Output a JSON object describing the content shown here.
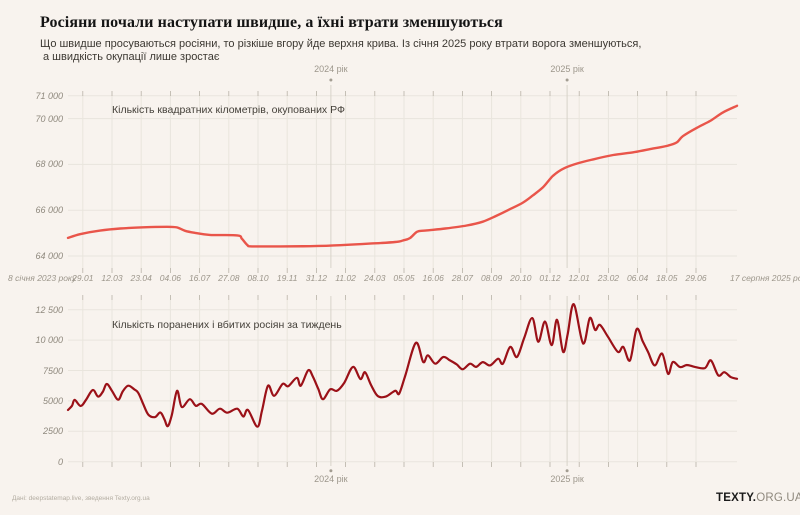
{
  "header": {
    "title": "Росіяни почали наступати швидше, а їхні втрати зменшуються",
    "subtitle_line1": "Що швидше просуваються росіяни, то різкіше вгору йде верхня крива. Із січня 2025 року втрати ворога зменшуються,",
    "subtitle_line2": "а швидкість окупації лише зростає"
  },
  "footer": {
    "source": "Дані: deepstatemap.live, зведення Texty.org.ua",
    "logo_bold": "TEXTY.",
    "logo_light": "ORG.UA"
  },
  "axis": {
    "x_left_label": "8 січня 2023 року",
    "x_right_label": "17 серпня 2025 року",
    "x_ticks": [
      "29.01",
      "12.03",
      "23.04",
      "04.06",
      "16.07",
      "27.08",
      "08.10",
      "19.11",
      "31.12",
      "11.02",
      "24.03",
      "05.05",
      "16.06",
      "28.07",
      "08.09",
      "20.10",
      "01.12",
      "12.01",
      "23.02",
      "06.04",
      "18.05",
      "29.06"
    ],
    "year_markers": [
      {
        "label": "2024 рік",
        "t": 0.393
      },
      {
        "label": "2025 рік",
        "t": 0.746
      }
    ]
  },
  "chart_data": [
    {
      "type": "line",
      "title": "Кількість квадратних кілометрів, окупованих РФ",
      "color": "#e9554a",
      "x_range": [
        "2023-01-08",
        "2025-08-17"
      ],
      "ylim": [
        63800,
        71000
      ],
      "y_ticks": [
        {
          "label": "71 000",
          "value": 71000
        },
        {
          "label": "70 000",
          "value": 70000
        },
        {
          "label": "68 000",
          "value": 68000
        },
        {
          "label": "66 000",
          "value": 66000
        },
        {
          "label": "64 000",
          "value": 64000
        }
      ],
      "points": [
        [
          0.0,
          64790
        ],
        [
          0.018,
          64950
        ],
        [
          0.048,
          65110
        ],
        [
          0.078,
          65200
        ],
        [
          0.123,
          65260
        ],
        [
          0.155,
          65270
        ],
        [
          0.164,
          65240
        ],
        [
          0.175,
          65100
        ],
        [
          0.19,
          65010
        ],
        [
          0.212,
          64920
        ],
        [
          0.253,
          64900
        ],
        [
          0.26,
          64750
        ],
        [
          0.268,
          64480
        ],
        [
          0.275,
          64420
        ],
        [
          0.317,
          64420
        ],
        [
          0.362,
          64430
        ],
        [
          0.407,
          64470
        ],
        [
          0.451,
          64540
        ],
        [
          0.489,
          64610
        ],
        [
          0.501,
          64680
        ],
        [
          0.511,
          64780
        ],
        [
          0.522,
          65060
        ],
        [
          0.534,
          65110
        ],
        [
          0.564,
          65200
        ],
        [
          0.596,
          65330
        ],
        [
          0.62,
          65500
        ],
        [
          0.64,
          65750
        ],
        [
          0.659,
          66020
        ],
        [
          0.68,
          66330
        ],
        [
          0.695,
          66650
        ],
        [
          0.71,
          67000
        ],
        [
          0.725,
          67500
        ],
        [
          0.74,
          67810
        ],
        [
          0.761,
          68040
        ],
        [
          0.785,
          68220
        ],
        [
          0.815,
          68410
        ],
        [
          0.845,
          68530
        ],
        [
          0.874,
          68690
        ],
        [
          0.897,
          68820
        ],
        [
          0.91,
          68960
        ],
        [
          0.919,
          69230
        ],
        [
          0.94,
          69600
        ],
        [
          0.96,
          69900
        ],
        [
          0.979,
          70270
        ],
        [
          1.0,
          70560
        ]
      ]
    },
    {
      "type": "line",
      "title": "Кількість поранених і вбитих росіян за тиждень",
      "color": "#9b1118",
      "x_range": [
        "2023-01-08",
        "2025-08-17"
      ],
      "ylim": [
        0,
        13300
      ],
      "y_ticks": [
        {
          "label": "12 500",
          "value": 12500
        },
        {
          "label": "10 000",
          "value": 10000
        },
        {
          "label": "7500",
          "value": 7500
        },
        {
          "label": "5000",
          "value": 5000
        },
        {
          "label": "2500",
          "value": 2500
        },
        {
          "label": "0",
          "value": 0
        }
      ],
      "points": [
        [
          0.0,
          4250
        ],
        [
          0.006,
          4600
        ],
        [
          0.01,
          5080
        ],
        [
          0.019,
          4580
        ],
        [
          0.027,
          5100
        ],
        [
          0.037,
          5900
        ],
        [
          0.045,
          5350
        ],
        [
          0.052,
          5750
        ],
        [
          0.058,
          6390
        ],
        [
          0.066,
          5800
        ],
        [
          0.075,
          5100
        ],
        [
          0.082,
          5800
        ],
        [
          0.09,
          6250
        ],
        [
          0.099,
          5950
        ],
        [
          0.105,
          5670
        ],
        [
          0.112,
          4800
        ],
        [
          0.12,
          3870
        ],
        [
          0.13,
          3670
        ],
        [
          0.138,
          4050
        ],
        [
          0.144,
          3500
        ],
        [
          0.149,
          2920
        ],
        [
          0.155,
          3800
        ],
        [
          0.163,
          5830
        ],
        [
          0.17,
          4500
        ],
        [
          0.182,
          5140
        ],
        [
          0.191,
          4600
        ],
        [
          0.2,
          4750
        ],
        [
          0.215,
          3950
        ],
        [
          0.227,
          4360
        ],
        [
          0.238,
          4030
        ],
        [
          0.253,
          4360
        ],
        [
          0.262,
          3720
        ],
        [
          0.269,
          4250
        ],
        [
          0.283,
          2880
        ],
        [
          0.29,
          4200
        ],
        [
          0.299,
          6250
        ],
        [
          0.308,
          5420
        ],
        [
          0.321,
          6400
        ],
        [
          0.329,
          6200
        ],
        [
          0.342,
          6900
        ],
        [
          0.348,
          6250
        ],
        [
          0.359,
          7520
        ],
        [
          0.366,
          7000
        ],
        [
          0.374,
          6000
        ],
        [
          0.381,
          5140
        ],
        [
          0.392,
          5950
        ],
        [
          0.402,
          5830
        ],
        [
          0.413,
          6500
        ],
        [
          0.426,
          7800
        ],
        [
          0.437,
          6800
        ],
        [
          0.444,
          7360
        ],
        [
          0.453,
          6300
        ],
        [
          0.463,
          5400
        ],
        [
          0.475,
          5350
        ],
        [
          0.489,
          5830
        ],
        [
          0.495,
          5600
        ],
        [
          0.504,
          7060
        ],
        [
          0.52,
          9780
        ],
        [
          0.531,
          8200
        ],
        [
          0.538,
          8750
        ],
        [
          0.549,
          8060
        ],
        [
          0.561,
          8610
        ],
        [
          0.571,
          8330
        ],
        [
          0.581,
          8000
        ],
        [
          0.59,
          7600
        ],
        [
          0.601,
          8060
        ],
        [
          0.61,
          7800
        ],
        [
          0.62,
          8190
        ],
        [
          0.631,
          7920
        ],
        [
          0.643,
          8470
        ],
        [
          0.65,
          8060
        ],
        [
          0.661,
          9440
        ],
        [
          0.671,
          8610
        ],
        [
          0.682,
          10200
        ],
        [
          0.694,
          11810
        ],
        [
          0.703,
          9860
        ],
        [
          0.713,
          11530
        ],
        [
          0.723,
          9580
        ],
        [
          0.731,
          11670
        ],
        [
          0.74,
          9030
        ],
        [
          0.747,
          10500
        ],
        [
          0.756,
          12950
        ],
        [
          0.77,
          9720
        ],
        [
          0.78,
          11810
        ],
        [
          0.788,
          10830
        ],
        [
          0.795,
          11250
        ],
        [
          0.807,
          10280
        ],
        [
          0.822,
          9030
        ],
        [
          0.83,
          9440
        ],
        [
          0.84,
          8330
        ],
        [
          0.85,
          10900
        ],
        [
          0.859,
          9900
        ],
        [
          0.867,
          9030
        ],
        [
          0.877,
          7920
        ],
        [
          0.888,
          8890
        ],
        [
          0.897,
          7220
        ],
        [
          0.904,
          8200
        ],
        [
          0.915,
          7780
        ],
        [
          0.925,
          7950
        ],
        [
          0.937,
          7800
        ],
        [
          0.952,
          7700
        ],
        [
          0.961,
          8330
        ],
        [
          0.972,
          7100
        ],
        [
          0.981,
          7360
        ],
        [
          0.991,
          6950
        ],
        [
          1.0,
          6820
        ]
      ]
    }
  ],
  "colors": {
    "background": "#f8f3ee",
    "grid": "#e9e5dd",
    "year_line": "#d8d3c9",
    "tick_mark": "#b8b2a7",
    "marker_dot": "#a39d92",
    "occupied_line": "#e9554a",
    "casualties_line": "#9b1118"
  }
}
